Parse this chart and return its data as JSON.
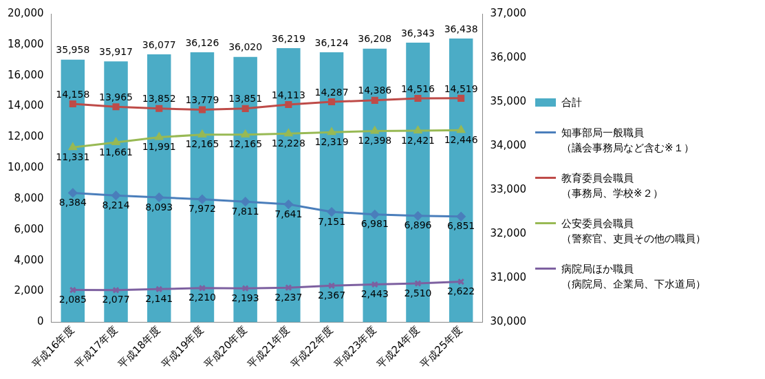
{
  "chart_data": {
    "type": "line",
    "categories": [
      "平成16年度",
      "平成17年度",
      "平成18年度",
      "平成19年度",
      "平成20年度",
      "平成21年度",
      "平成22年度",
      "平成23年度",
      "平成24年度",
      "平成25年度"
    ],
    "series": [
      {
        "name": "合計",
        "type": "bar",
        "axis": "y2",
        "color": "#4bacc6",
        "values": [
          35958,
          35917,
          36077,
          36126,
          36020,
          36219,
          36124,
          36208,
          36343,
          36438
        ],
        "value_labels": [
          "35,958",
          "35,917",
          "36,077",
          "36,126",
          "36,020",
          "36,219",
          "36,124",
          "36,208",
          "36,343",
          "36,438"
        ]
      },
      {
        "name": "知事部局一般職員（議会事務局など含む※１）",
        "color": "#4a7ebb",
        "marker": "diamond",
        "values": [
          8384,
          8214,
          8093,
          7972,
          7811,
          7641,
          7151,
          6981,
          6896,
          6851
        ],
        "value_labels": [
          "8,384",
          "8,214",
          "8,093",
          "7,972",
          "7,811",
          "7,641",
          "7,151",
          "6,981",
          "6,896",
          "6,851"
        ]
      },
      {
        "name": "教育委員会職員（事務局、学校※２）",
        "color": "#be4b48",
        "marker": "square",
        "values": [
          14158,
          13965,
          13852,
          13779,
          13851,
          14113,
          14287,
          14386,
          14516,
          14519
        ],
        "value_labels": [
          "14,158",
          "13,965",
          "13,852",
          "13,779",
          "13,851",
          "14,113",
          "14,287",
          "14,386",
          "14,516",
          "14,519"
        ]
      },
      {
        "name": "公安委員会職員（警察官、吏員その他の職員）",
        "color": "#98b954",
        "marker": "triangle",
        "values": [
          11331,
          11661,
          11991,
          12165,
          12165,
          12228,
          12319,
          12398,
          12421,
          12446
        ],
        "value_labels": [
          "11,331",
          "11,661",
          "11,991",
          "12,165",
          "12,165",
          "12,228",
          "12,319",
          "12,398",
          "12,421",
          "12,446"
        ]
      },
      {
        "name": "病院局ほか職員（病院局、企業局、下水道局）",
        "color": "#7d60a0",
        "marker": "cross",
        "values": [
          2085,
          2077,
          2141,
          2210,
          2193,
          2237,
          2367,
          2443,
          2510,
          2622
        ],
        "value_labels": [
          "2,085",
          "2,077",
          "2,141",
          "2,210",
          "2,193",
          "2,237",
          "2,367",
          "2,443",
          "2,510",
          "2,622"
        ]
      }
    ],
    "ylim": [
      0,
      20000
    ],
    "yticks": [
      0,
      {
        "value": 2000,
        "label": "2,000"
      },
      {
        "value": 4000,
        "label": "4,000"
      },
      {
        "value": 6000,
        "label": "6,000"
      },
      {
        "value": 8000,
        "label": "8,000"
      },
      {
        "value": 10000,
        "label": "10,000"
      },
      {
        "value": 12000,
        "label": "12,000"
      },
      {
        "value": 14000,
        "label": "14,000"
      },
      {
        "value": 16000,
        "label": "16,000"
      },
      {
        "value": 18000,
        "label": "18,000"
      },
      {
        "value": 20000,
        "label": "20,000"
      }
    ],
    "y2lim": [
      30000,
      37000
    ],
    "y2ticks": [
      {
        "value": 30000,
        "label": "30,000"
      },
      {
        "value": 31000,
        "label": "31,000"
      },
      {
        "value": 32000,
        "label": "32,000"
      },
      {
        "value": 33000,
        "label": "33,000"
      },
      {
        "value": 34000,
        "label": "34,000"
      },
      {
        "value": 35000,
        "label": "35,000"
      },
      {
        "value": 36000,
        "label": "36,000"
      },
      {
        "value": 37000,
        "label": "37,000"
      }
    ],
    "grid": false,
    "legend": "right"
  }
}
